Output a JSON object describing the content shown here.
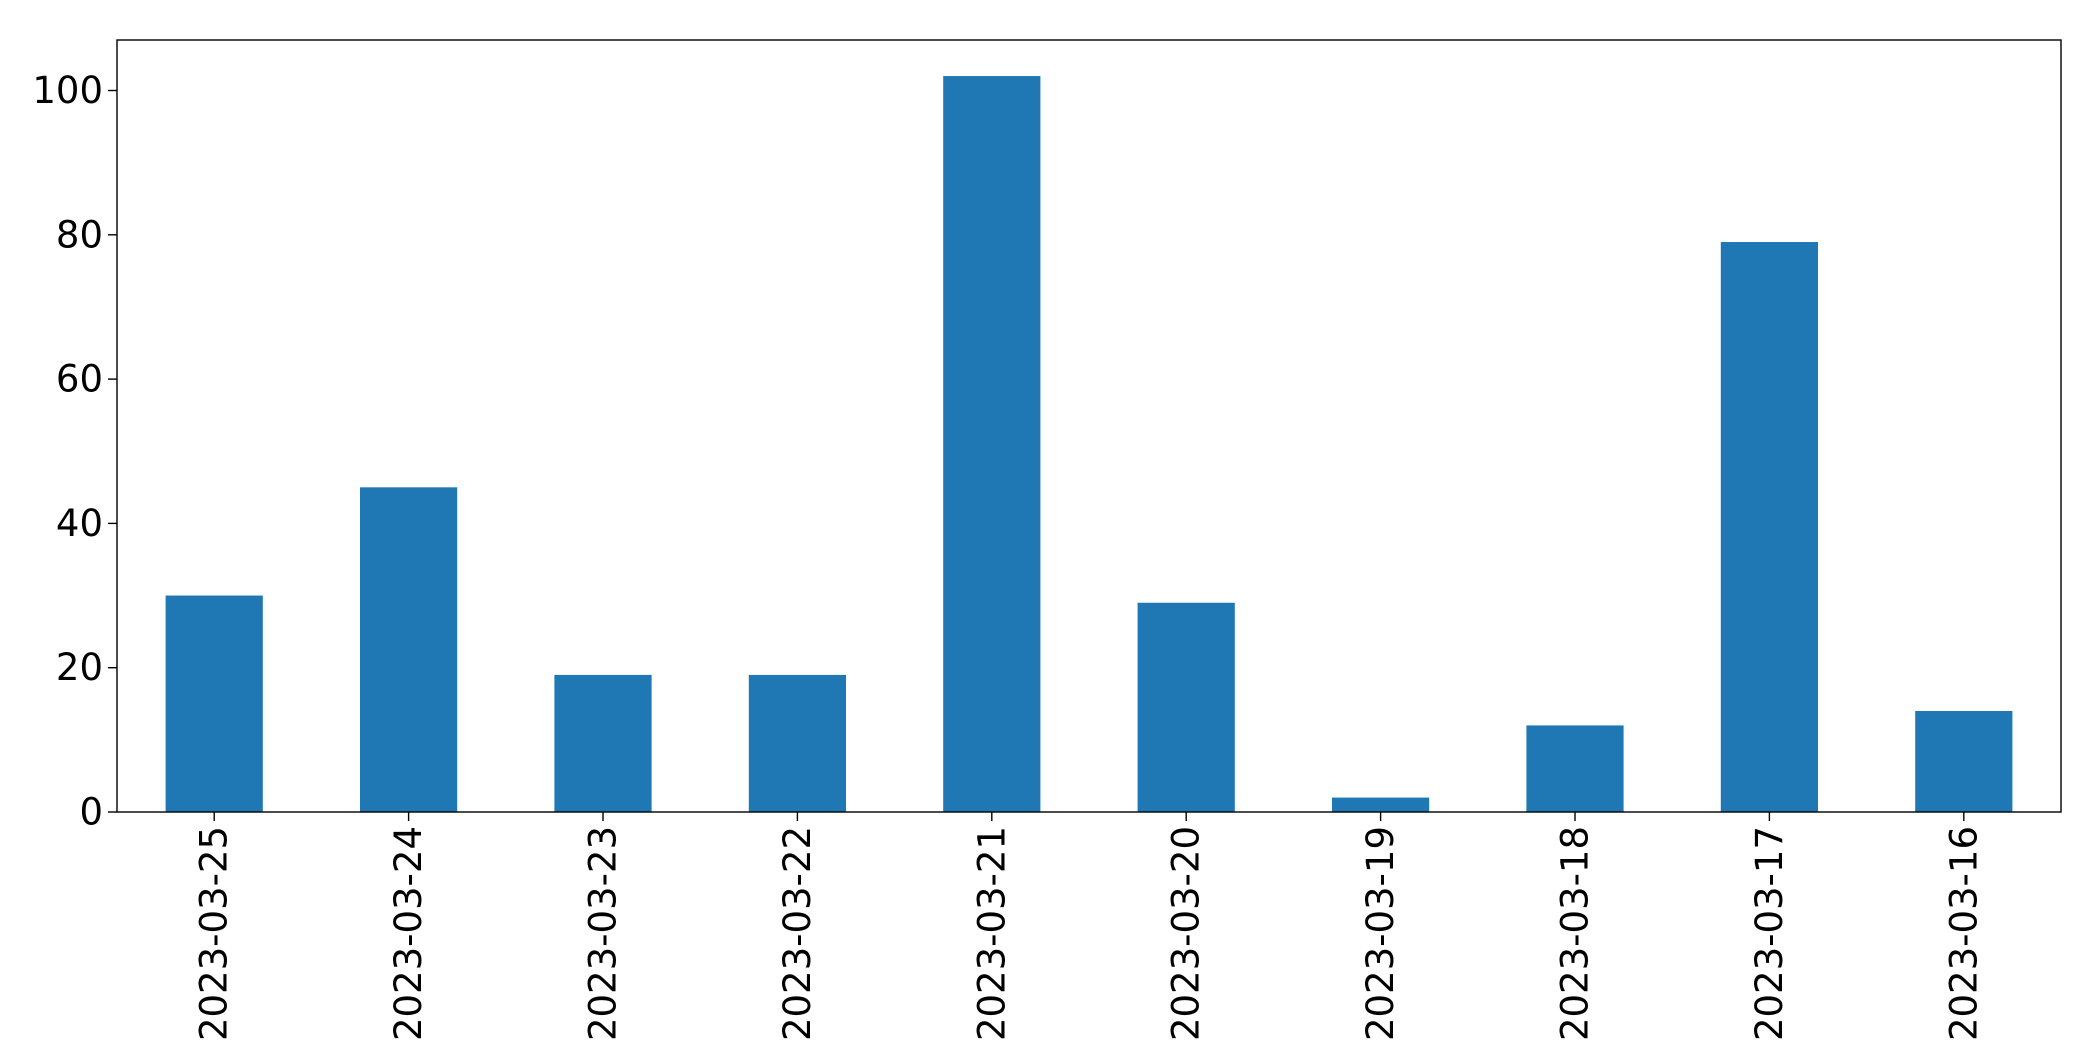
{
  "colors": {
    "bar": "#1f77b4",
    "axis": "#000000",
    "background": "#ffffff"
  },
  "chart_data": {
    "type": "bar",
    "title": "",
    "xlabel": "",
    "ylabel": "",
    "categories": [
      "2023-03-25",
      "2023-03-24",
      "2023-03-23",
      "2023-03-22",
      "2023-03-21",
      "2023-03-20",
      "2023-03-19",
      "2023-03-18",
      "2023-03-17",
      "2023-03-16"
    ],
    "values": [
      30,
      45,
      19,
      19,
      102,
      29,
      2,
      12,
      79,
      14
    ],
    "ylim": [
      0,
      107
    ],
    "yticks": [
      0,
      20,
      40,
      60,
      80,
      100
    ],
    "grid": false,
    "legend": "none",
    "x_tick_rotation": "vertical"
  }
}
